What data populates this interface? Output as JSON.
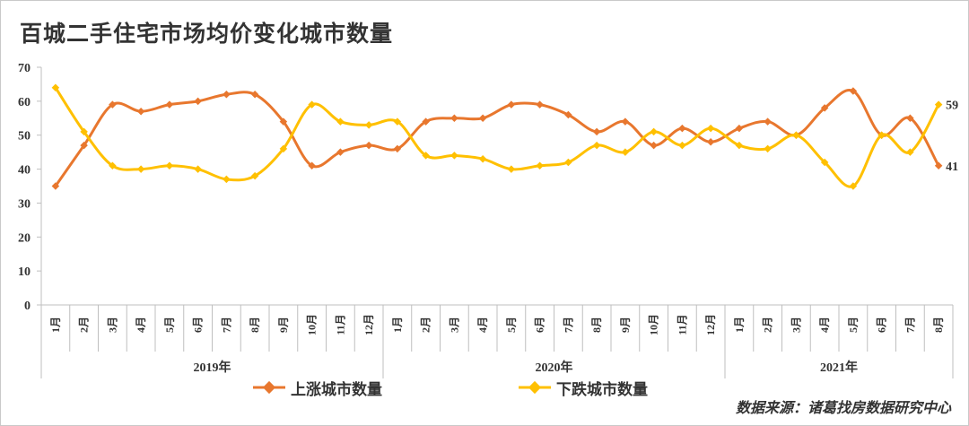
{
  "title": "百城二手住宅市场均价变化城市数量",
  "source": "数据来源：诸葛找房数据研究中心",
  "colors": {
    "rise": "#E8772E",
    "fall": "#FFC000",
    "axis": "#bfbfbf",
    "text": "#333333"
  },
  "chart_data": {
    "type": "line",
    "title": "百城二手住宅市场均价变化城市数量",
    "ylim": [
      0,
      70
    ],
    "yticks": [
      0,
      10,
      20,
      30,
      40,
      50,
      60,
      70
    ],
    "grid": false,
    "legend_position": "bottom",
    "categories": [
      "1月",
      "2月",
      "3月",
      "4月",
      "5月",
      "6月",
      "7月",
      "8月",
      "9月",
      "10月",
      "11月",
      "12月",
      "1月",
      "2月",
      "3月",
      "4月",
      "5月",
      "6月",
      "7月",
      "8月",
      "9月",
      "10月",
      "11月",
      "12月",
      "1月",
      "2月",
      "3月",
      "4月",
      "5月",
      "6月",
      "7月",
      "8月"
    ],
    "year_groups": [
      {
        "label": "2019年",
        "count": 12
      },
      {
        "label": "2020年",
        "count": 12
      },
      {
        "label": "2021年",
        "count": 8
      }
    ],
    "series": [
      {
        "name": "上涨城市数量",
        "color": "#E8772E",
        "values": [
          35,
          47,
          59,
          57,
          59,
          60,
          62,
          62,
          54,
          41,
          45,
          47,
          46,
          54,
          55,
          55,
          59,
          59,
          56,
          51,
          54,
          47,
          52,
          48,
          52,
          54,
          50,
          58,
          63,
          50,
          55,
          41
        ],
        "end_label": "41"
      },
      {
        "name": "下跌城市数量",
        "color": "#FFC000",
        "values": [
          64,
          51,
          41,
          40,
          41,
          40,
          37,
          38,
          46,
          59,
          54,
          53,
          54,
          44,
          44,
          43,
          40,
          41,
          42,
          47,
          45,
          51,
          47,
          52,
          47,
          46,
          50,
          42,
          35,
          50,
          45,
          59
        ],
        "end_label": "59"
      }
    ]
  }
}
